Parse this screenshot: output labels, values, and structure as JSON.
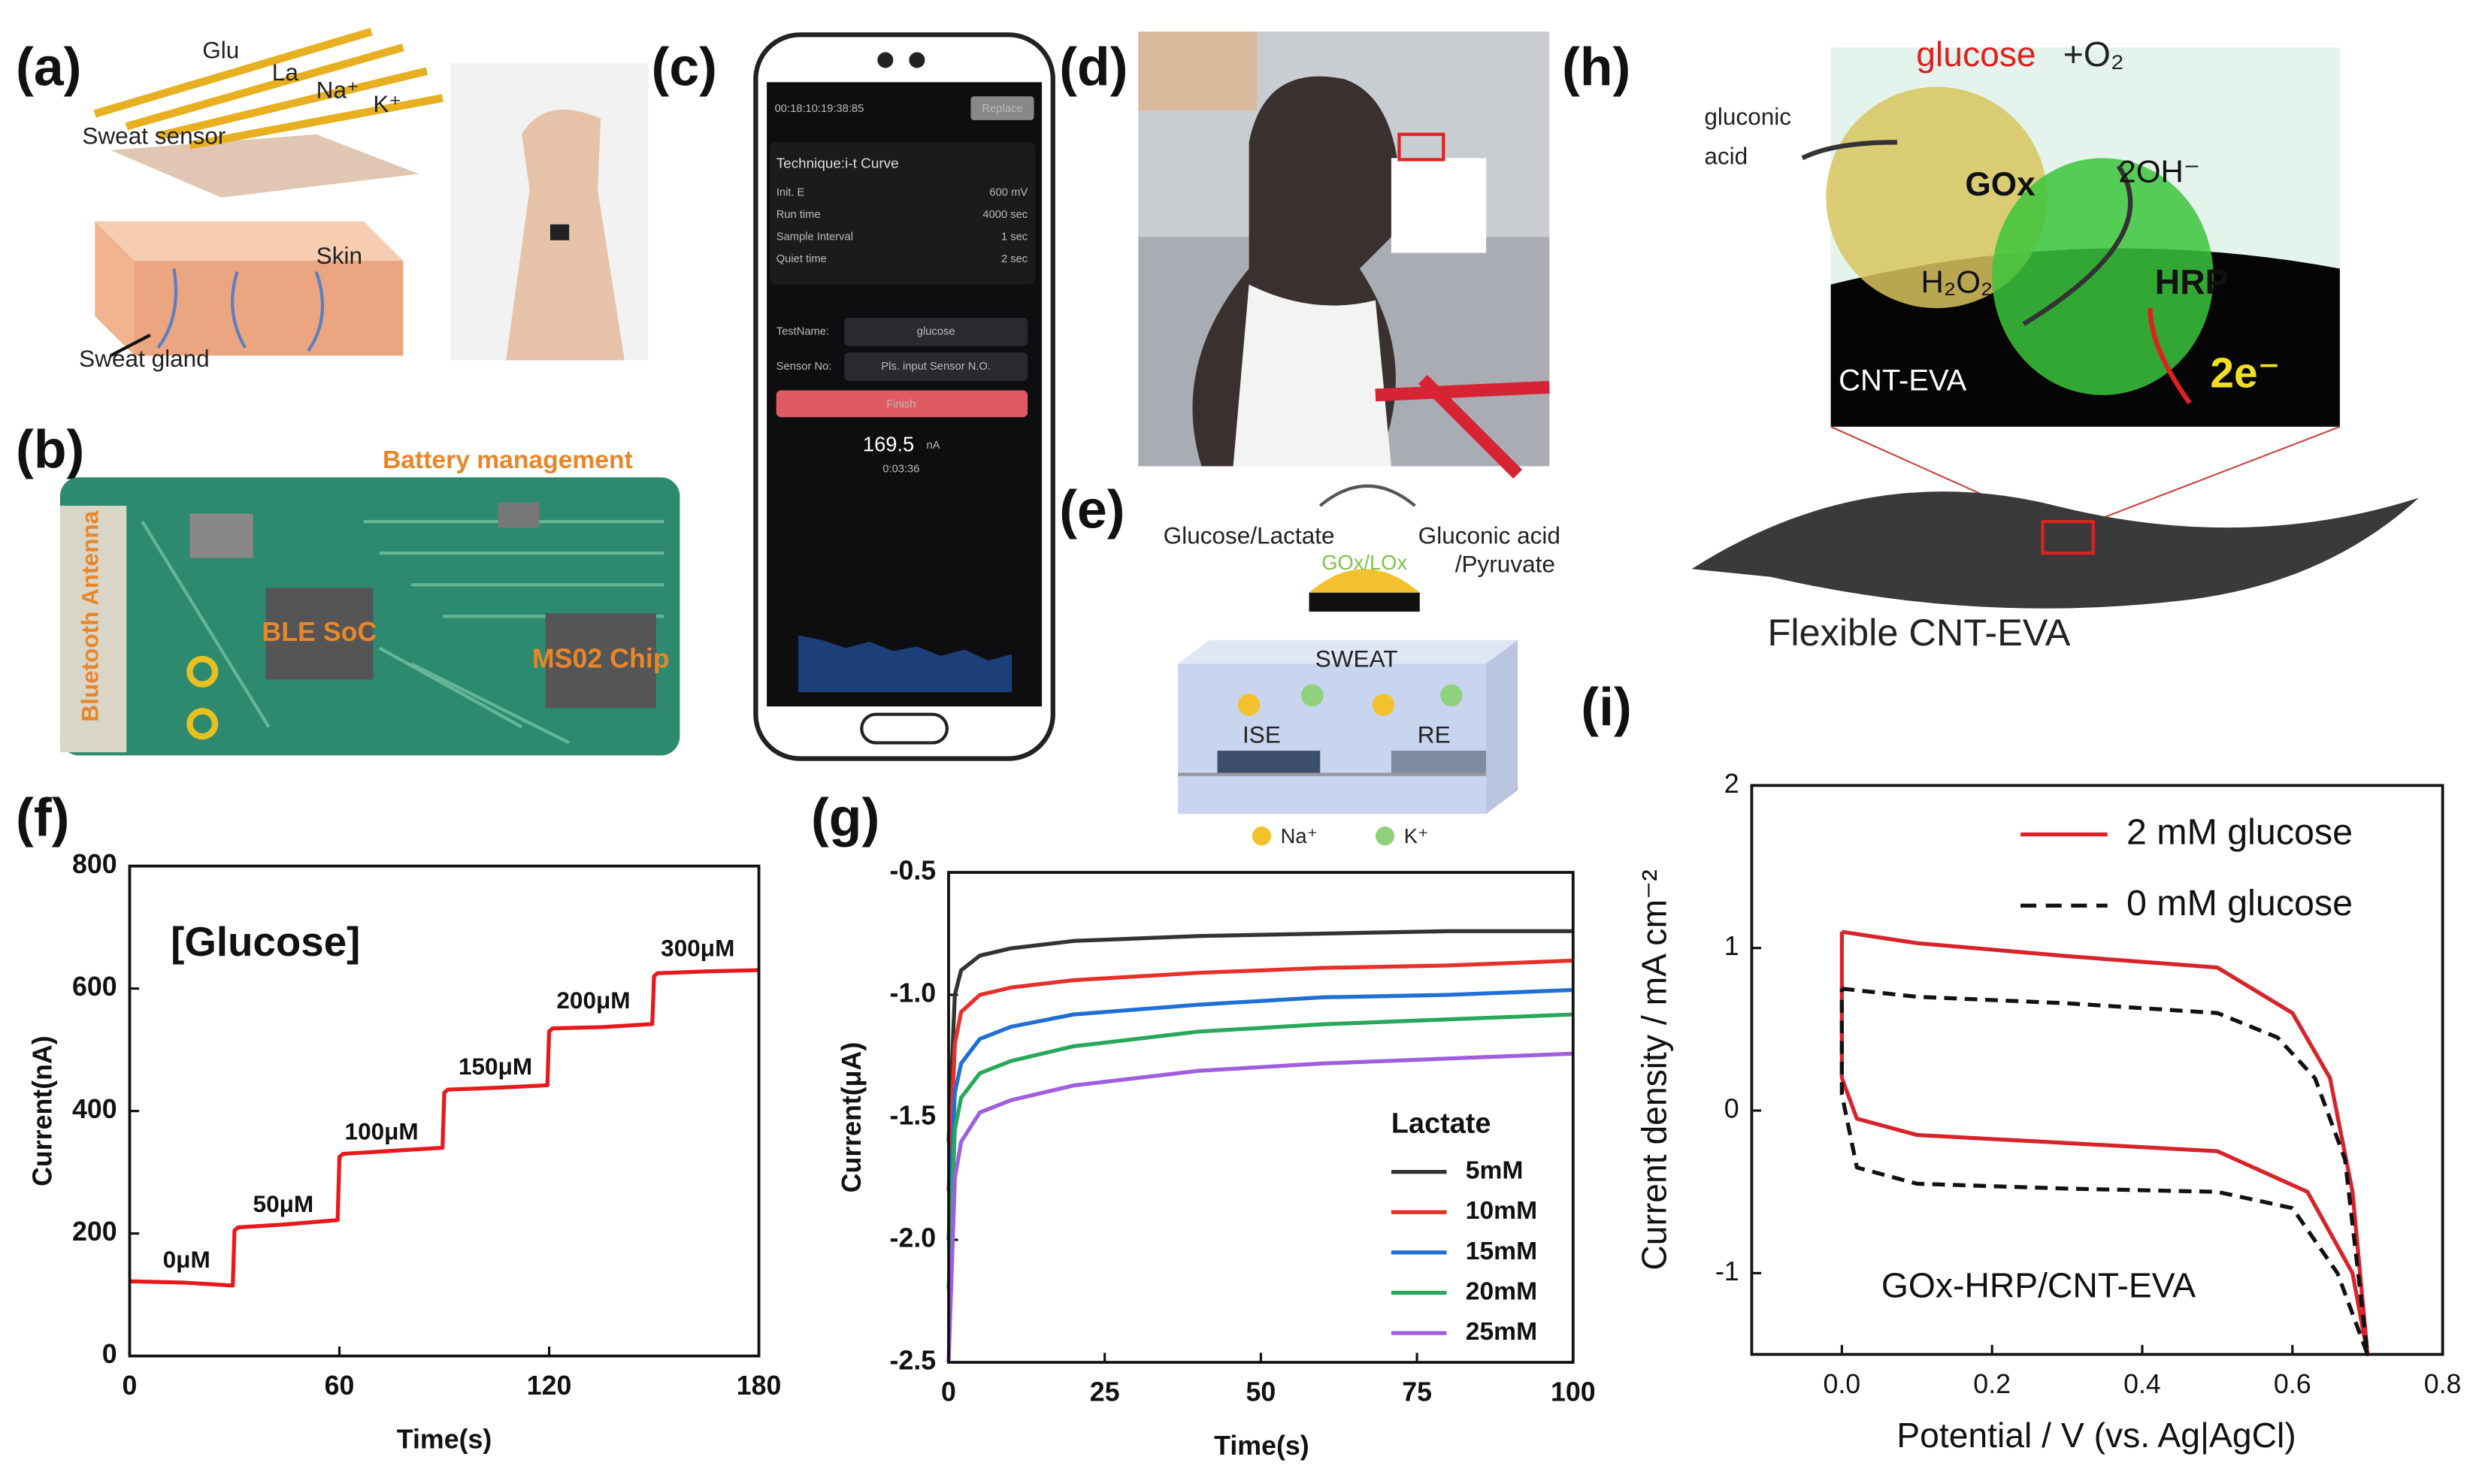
{
  "panels": {
    "a": {
      "label": "(a)",
      "texts": [
        "Glu",
        "La",
        "Na⁺",
        "K⁺",
        "Sweat sensor",
        "Skin",
        "Sweat gland"
      ]
    },
    "b": {
      "label": "(b)",
      "texts": [
        "Battery management",
        "Bluetooth Antenna",
        "BLE SoC",
        "MS02 Chip"
      ]
    },
    "c": {
      "label": "(c)",
      "texts": [
        "00:18:10:19:38:85",
        "Replace",
        "Technique:i-t Curve",
        "Init. E",
        "600 mV",
        "Run time",
        "4000 sec",
        "Sample Interval",
        "1 sec",
        "Quiet time",
        "2 sec",
        "TestName:",
        "glucose",
        "Sensor No:",
        "Pls. input Sensor N.O.",
        "Finish",
        "169.5",
        "nA",
        "0:03:36"
      ]
    },
    "d": {
      "label": "(d)"
    },
    "e": {
      "label": "(e)",
      "texts": [
        "Glucose/Lactate",
        "Gluconic acid",
        "/Pyruvate",
        "GOx/LOx",
        "SWEAT",
        "ISE",
        "RE",
        "Na⁺",
        "K⁺"
      ]
    },
    "h": {
      "label": "(h)",
      "texts": [
        "glucose",
        "+O₂",
        "gluconic",
        "acid",
        "GOx",
        "2OH⁻",
        "H₂O₂",
        "HRP",
        "2e⁻",
        "CNT-EVA",
        "Flexible CNT-EVA"
      ]
    }
  },
  "chart_data": [
    {
      "type": "line",
      "panel_label": "(f)",
      "xlabel": "Time(s)",
      "ylabel": "Current(nA)",
      "xlim": [
        0,
        180
      ],
      "ylim": [
        0,
        800
      ],
      "xticks": [
        0,
        60,
        120,
        180
      ],
      "yticks": [
        0,
        200,
        400,
        600,
        800
      ],
      "annotations": [
        "[Glucose]",
        "0μM",
        "50μM",
        "100μM",
        "150μM",
        "200μM",
        "300μM"
      ],
      "series": [
        {
          "color": "#e8191c",
          "x": [
            0,
            15,
            29.5,
            30,
            31,
            45,
            59.5,
            60,
            61,
            75,
            89.5,
            90,
            91,
            105,
            119.5,
            120,
            121,
            135,
            149.5,
            150,
            151,
            165,
            180
          ],
          "values": [
            122,
            120,
            115,
            205,
            210,
            215,
            222,
            325,
            330,
            335,
            340,
            430,
            435,
            438,
            442,
            530,
            535,
            537,
            542,
            620,
            625,
            628,
            630
          ]
        }
      ]
    },
    {
      "type": "line",
      "panel_label": "(g)",
      "xlabel": "Time(s)",
      "ylabel": "Current(μA)",
      "legend_title": "Lactate",
      "xlim": [
        0,
        100
      ],
      "ylim": [
        -2.5,
        -0.5
      ],
      "xticks": [
        0,
        25,
        50,
        75,
        100
      ],
      "yticks": [
        -2.5,
        {
          "value": -2,
          "label": "-2.0"
        },
        -1.5,
        {
          "value": -1,
          "label": "-1.0"
        },
        -0.5
      ],
      "series": [
        {
          "name": "5mM",
          "color": "#333333",
          "x": [
            0,
            1,
            2,
            5,
            10,
            20,
            40,
            60,
            80,
            100
          ],
          "values": [
            -1.6,
            -1.0,
            -0.9,
            -0.84,
            -0.81,
            -0.78,
            -0.76,
            -0.75,
            -0.74,
            -0.74
          ]
        },
        {
          "name": "10mM",
          "color": "#e8302a",
          "x": [
            0,
            1,
            2,
            5,
            10,
            20,
            40,
            60,
            80,
            100
          ],
          "values": [
            -1.8,
            -1.2,
            -1.07,
            -1.0,
            -0.97,
            -0.94,
            -0.91,
            -0.89,
            -0.88,
            -0.86
          ]
        },
        {
          "name": "15mM",
          "color": "#1f6fd6",
          "x": [
            0,
            1,
            2,
            5,
            10,
            20,
            40,
            60,
            80,
            100
          ],
          "values": [
            -2.0,
            -1.4,
            -1.28,
            -1.18,
            -1.13,
            -1.08,
            -1.04,
            -1.01,
            -1.0,
            -0.98
          ]
        },
        {
          "name": "20mM",
          "color": "#27a85a",
          "x": [
            0,
            1,
            2,
            5,
            10,
            20,
            40,
            60,
            80,
            100
          ],
          "values": [
            -2.2,
            -1.55,
            -1.42,
            -1.32,
            -1.27,
            -1.21,
            -1.15,
            -1.12,
            -1.1,
            -1.08
          ]
        },
        {
          "name": "25mM",
          "color": "#a05de0",
          "x": [
            0,
            1,
            2,
            5,
            10,
            20,
            40,
            60,
            80,
            100
          ],
          "values": [
            -2.5,
            -1.75,
            -1.6,
            -1.48,
            -1.43,
            -1.37,
            -1.31,
            -1.28,
            -1.26,
            -1.24
          ]
        }
      ]
    },
    {
      "type": "line",
      "panel_label": "(i)",
      "xlabel": "Potential / V (vs. Ag|AgCl)",
      "ylabel": "Current density / mA cm⁻²",
      "annotations": [
        "GOx-HRP/CNT-EVA"
      ],
      "xlim": [
        -0.12,
        0.8
      ],
      "ylim": [
        -1.5,
        2
      ],
      "xticks": [
        {
          "value": 0,
          "label": "0.0"
        },
        0.2,
        0.4,
        0.6,
        0.8
      ],
      "yticks": [
        -1,
        0,
        1,
        2
      ],
      "series": [
        {
          "name": "2 mM glucose",
          "color": "#d8232a",
          "linestyle": "solid",
          "x": [
            0,
            0.1,
            0.3,
            0.5,
            0.6,
            0.65,
            0.68,
            0.7,
            0.68,
            0.62,
            0.5,
            0.3,
            0.1,
            0.02,
            0,
            0
          ],
          "values": [
            1.1,
            1.03,
            0.95,
            0.88,
            0.6,
            0.2,
            -0.5,
            -1.5,
            -1.0,
            -0.5,
            -0.25,
            -0.2,
            -0.15,
            -0.05,
            0.2,
            1.1
          ]
        },
        {
          "name": "0 mM glucose",
          "color": "#111111",
          "linestyle": "dashed",
          "x": [
            0,
            0.1,
            0.3,
            0.5,
            0.58,
            0.63,
            0.67,
            0.7,
            0.66,
            0.6,
            0.5,
            0.3,
            0.1,
            0.02,
            0,
            0
          ],
          "values": [
            0.75,
            0.7,
            0.66,
            0.6,
            0.45,
            0.2,
            -0.3,
            -1.5,
            -1.0,
            -0.6,
            -0.5,
            -0.48,
            -0.45,
            -0.35,
            0.1,
            0.75
          ]
        }
      ]
    }
  ]
}
